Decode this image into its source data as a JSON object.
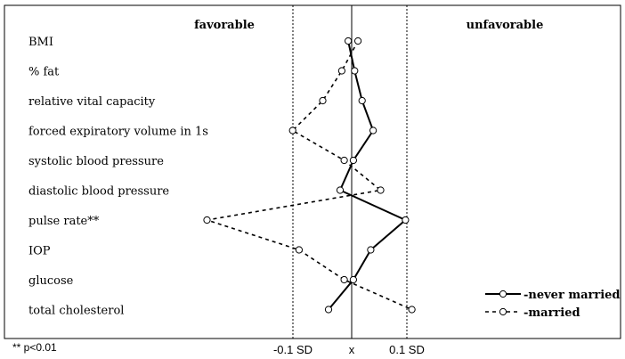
{
  "chart_data": {
    "type": "line",
    "orientation": "horizontal",
    "header_left": "favorable",
    "header_right": "unfavorable",
    "categories": [
      "BMI",
      "% fat",
      "relative vital capacity",
      "forced expiratory volume in 1s",
      "systolic blood pressure",
      "diastolic blood pressure",
      "pulse rate**",
      "IOP",
      "glucose",
      "total cholesterol"
    ],
    "x_ticks": [
      {
        "value": -0.1,
        "label": "-0.1 SD"
      },
      {
        "value": 0,
        "label": "x"
      },
      {
        "value": 0.1,
        "label": "0.1 SD"
      }
    ],
    "xlim": [
      -0.2,
      0.2
    ],
    "footnote": "** p<0.01",
    "legend_position": "bottom-right",
    "series": [
      {
        "name": "-never married",
        "line_style": "solid",
        "values": [
          -0.006,
          0.005,
          0.018,
          0.037,
          0.003,
          -0.02,
          0.093,
          0.033,
          0.003,
          -0.04
        ]
      },
      {
        "name": "-married",
        "line_style": "dashed",
        "values": [
          0.011,
          -0.017,
          -0.05,
          -0.102,
          -0.013,
          0.05,
          -0.25,
          -0.091,
          -0.013,
          0.104
        ]
      }
    ]
  }
}
